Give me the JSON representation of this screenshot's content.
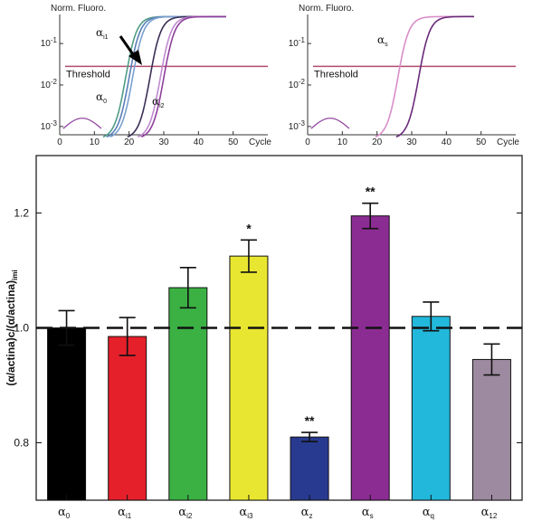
{
  "chart_data": [
    {
      "type": "line",
      "ylabel": "Norm. Fluoro.",
      "xlabel": "Cycle",
      "x_ticks": [
        0,
        10,
        20,
        30,
        40,
        50
      ],
      "y_ticks": [
        "10^-3",
        "10^-2",
        "10^-1"
      ],
      "ylim_log10": [
        -3.2,
        -0.3
      ],
      "xlim": [
        0,
        60
      ],
      "threshold": {
        "label": "Threshold",
        "y_log10": -1.55
      },
      "curve_labels": [
        {
          "greek": "α",
          "sub": "i1"
        },
        {
          "greek": "α",
          "sub": "0"
        },
        {
          "greek": "α",
          "sub": "i2"
        }
      ],
      "series": [
        {
          "ct": 16,
          "color": "#4f9d86"
        },
        {
          "ct": 17,
          "color": "#5a7fb8"
        },
        {
          "ct": 18,
          "color": "#7aa0cf"
        },
        {
          "ct": 23,
          "color": "#3b2f55"
        },
        {
          "ct": 26,
          "color": "#c08ad0"
        },
        {
          "ct": 27,
          "color": "#8e3f9c"
        }
      ]
    },
    {
      "type": "line",
      "ylabel": "Norm. Fluoro.",
      "xlabel": "Cycle",
      "x_ticks": [
        0,
        10,
        20,
        30,
        40,
        50
      ],
      "y_ticks": [
        "10^-3",
        "10^-2",
        "10^-1"
      ],
      "ylim_log10": [
        -3.2,
        -0.3
      ],
      "xlim": [
        0,
        60
      ],
      "threshold": {
        "label": "Threshold",
        "y_log10": -1.55
      },
      "curve_labels": [
        {
          "greek": "α",
          "sub": "s"
        }
      ],
      "series": [
        {
          "ct": 23,
          "color": "#d98ec9"
        },
        {
          "ct": 29,
          "color": "#6a2a7a"
        }
      ]
    },
    {
      "type": "bar",
      "ylabel": {
        "main": "(α/actina)c/(α/actina)",
        "sub": "imi"
      },
      "ylim": [
        0.7,
        1.3
      ],
      "y_ticks": [
        0.8,
        1.0,
        1.2
      ],
      "reference_line": 1.0,
      "categories": [
        {
          "greek": "α",
          "sub": "0"
        },
        {
          "greek": "α",
          "sub": "i1"
        },
        {
          "greek": "α",
          "sub": "i2"
        },
        {
          "greek": "α",
          "sub": "i3"
        },
        {
          "greek": "α",
          "sub": "z"
        },
        {
          "greek": "α",
          "sub": "s"
        },
        {
          "greek": "α",
          "sub": "q"
        },
        {
          "greek": "α",
          "sub": "12"
        }
      ],
      "values": [
        1.0,
        0.985,
        1.07,
        1.125,
        0.81,
        1.195,
        1.02,
        0.945
      ],
      "errors": [
        0.03,
        0.033,
        0.035,
        0.028,
        0.008,
        0.022,
        0.025,
        0.027
      ],
      "significance": [
        "",
        "",
        "",
        "*",
        "**",
        "**",
        "",
        ""
      ],
      "colors": [
        "#000000",
        "#e5202a",
        "#3bb144",
        "#e8e630",
        "#283a8f",
        "#8b2c93",
        "#22b8dc",
        "#9e8aa0"
      ]
    }
  ]
}
